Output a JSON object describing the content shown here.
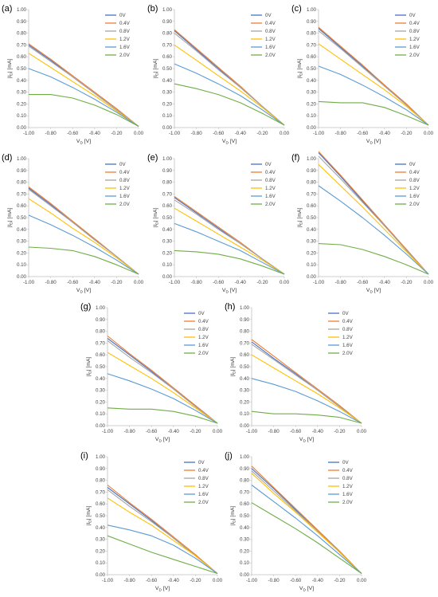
{
  "figure": {
    "xaxis": {
      "label": "V",
      "label_sub": "D",
      "label_unit": " [V]",
      "ticks": [
        "-1.00",
        "-0.80",
        "-0.60",
        "-0.40",
        "-0.20",
        "0.00"
      ],
      "range": [
        -1.0,
        0.0
      ]
    },
    "yaxis": {
      "label": "|I",
      "label_sub": "D",
      "label_unit": "| [mA]",
      "ticks": [
        "0.00",
        "0.10",
        "0.20",
        "0.30",
        "0.40",
        "0.50",
        "0.60",
        "0.70",
        "0.80",
        "0.90",
        "1.00"
      ],
      "range": [
        0.0,
        1.0
      ]
    },
    "legend": [
      "0V",
      "0.4V",
      "0.8V",
      "1.2V",
      "1.6V",
      "2.0V"
    ],
    "colors": [
      "#4472C4",
      "#ED7D31",
      "#A5A5A5",
      "#FFC000",
      "#5B9BD5",
      "#70AD47"
    ]
  },
  "chart_data": [
    {
      "panel": "(a)",
      "type": "line",
      "x": [
        -1.0,
        -0.8,
        -0.6,
        -0.4,
        -0.2,
        0.0
      ],
      "series": [
        {
          "name": "0V",
          "values": [
            0.7,
            0.57,
            0.43,
            0.29,
            0.15,
            0.01
          ]
        },
        {
          "name": "0.4V",
          "values": [
            0.71,
            0.58,
            0.44,
            0.3,
            0.16,
            0.01
          ]
        },
        {
          "name": "0.8V",
          "values": [
            0.69,
            0.56,
            0.43,
            0.29,
            0.15,
            0.01
          ]
        },
        {
          "name": "1.2V",
          "values": [
            0.63,
            0.51,
            0.39,
            0.27,
            0.14,
            0.01
          ]
        },
        {
          "name": "1.6V",
          "values": [
            0.5,
            0.43,
            0.34,
            0.24,
            0.13,
            0.01
          ]
        },
        {
          "name": "2.0V",
          "values": [
            0.28,
            0.28,
            0.25,
            0.19,
            0.11,
            0.01
          ]
        }
      ]
    },
    {
      "panel": "(b)",
      "type": "line",
      "x": [
        -1.0,
        -0.8,
        -0.6,
        -0.4,
        -0.2,
        0.0
      ],
      "series": [
        {
          "name": "0V",
          "values": [
            0.82,
            0.66,
            0.5,
            0.34,
            0.18,
            0.02
          ]
        },
        {
          "name": "0.4V",
          "values": [
            0.83,
            0.67,
            0.51,
            0.35,
            0.18,
            0.02
          ]
        },
        {
          "name": "0.8V",
          "values": [
            0.8,
            0.65,
            0.49,
            0.34,
            0.18,
            0.02
          ]
        },
        {
          "name": "1.2V",
          "values": [
            0.7,
            0.57,
            0.44,
            0.31,
            0.17,
            0.02
          ]
        },
        {
          "name": "1.6V",
          "values": [
            0.54,
            0.46,
            0.37,
            0.27,
            0.15,
            0.02
          ]
        },
        {
          "name": "2.0V",
          "values": [
            0.37,
            0.33,
            0.28,
            0.21,
            0.12,
            0.02
          ]
        }
      ]
    },
    {
      "panel": "(c)",
      "type": "line",
      "x": [
        -1.0,
        -0.8,
        -0.6,
        -0.4,
        -0.2,
        0.0
      ],
      "series": [
        {
          "name": "0V",
          "values": [
            0.84,
            0.68,
            0.52,
            0.36,
            0.19,
            0.02
          ]
        },
        {
          "name": "0.4V",
          "values": [
            0.85,
            0.69,
            0.53,
            0.36,
            0.2,
            0.02
          ]
        },
        {
          "name": "0.8V",
          "values": [
            0.82,
            0.67,
            0.51,
            0.35,
            0.19,
            0.02
          ]
        },
        {
          "name": "1.2V",
          "values": [
            0.71,
            0.58,
            0.45,
            0.32,
            0.18,
            0.02
          ]
        },
        {
          "name": "1.6V",
          "values": [
            0.52,
            0.45,
            0.36,
            0.26,
            0.15,
            0.02
          ]
        },
        {
          "name": "2.0V",
          "values": [
            0.22,
            0.21,
            0.21,
            0.17,
            0.1,
            0.02
          ]
        }
      ]
    },
    {
      "panel": "(d)",
      "type": "line",
      "x": [
        -1.0,
        -0.8,
        -0.6,
        -0.4,
        -0.2,
        0.0
      ],
      "series": [
        {
          "name": "0V",
          "values": [
            0.75,
            0.61,
            0.46,
            0.32,
            0.17,
            0.02
          ]
        },
        {
          "name": "0.4V",
          "values": [
            0.76,
            0.62,
            0.47,
            0.32,
            0.17,
            0.02
          ]
        },
        {
          "name": "0.8V",
          "values": [
            0.74,
            0.6,
            0.46,
            0.31,
            0.17,
            0.02
          ]
        },
        {
          "name": "1.2V",
          "values": [
            0.66,
            0.54,
            0.41,
            0.29,
            0.16,
            0.02
          ]
        },
        {
          "name": "1.6V",
          "values": [
            0.52,
            0.44,
            0.35,
            0.25,
            0.14,
            0.02
          ]
        },
        {
          "name": "2.0V",
          "values": [
            0.25,
            0.24,
            0.22,
            0.17,
            0.1,
            0.02
          ]
        }
      ]
    },
    {
      "panel": "(e)",
      "type": "line",
      "x": [
        -1.0,
        -0.8,
        -0.6,
        -0.4,
        -0.2,
        0.0
      ],
      "series": [
        {
          "name": "0V",
          "values": [
            0.67,
            0.54,
            0.41,
            0.28,
            0.15,
            0.02
          ]
        },
        {
          "name": "0.4V",
          "values": [
            0.68,
            0.55,
            0.42,
            0.29,
            0.15,
            0.02
          ]
        },
        {
          "name": "0.8V",
          "values": [
            0.65,
            0.53,
            0.4,
            0.28,
            0.15,
            0.02
          ]
        },
        {
          "name": "1.2V",
          "values": [
            0.58,
            0.47,
            0.36,
            0.25,
            0.14,
            0.02
          ]
        },
        {
          "name": "1.6V",
          "values": [
            0.45,
            0.38,
            0.3,
            0.22,
            0.12,
            0.02
          ]
        },
        {
          "name": "2.0V",
          "values": [
            0.22,
            0.21,
            0.19,
            0.15,
            0.09,
            0.02
          ]
        }
      ]
    },
    {
      "panel": "(f)",
      "type": "line",
      "x": [
        -1.0,
        -0.8,
        -0.6,
        -0.4,
        -0.2,
        0.0
      ],
      "series": [
        {
          "name": "0V",
          "values": [
            1.05,
            0.85,
            0.64,
            0.43,
            0.23,
            0.02
          ]
        },
        {
          "name": "0.4V",
          "values": [
            1.06,
            0.86,
            0.65,
            0.44,
            0.23,
            0.02
          ]
        },
        {
          "name": "0.8V",
          "values": [
            1.02,
            0.83,
            0.63,
            0.43,
            0.22,
            0.02
          ]
        },
        {
          "name": "1.2V",
          "values": [
            0.95,
            0.77,
            0.59,
            0.4,
            0.21,
            0.02
          ]
        },
        {
          "name": "1.6V",
          "values": [
            0.77,
            0.64,
            0.5,
            0.35,
            0.19,
            0.02
          ]
        },
        {
          "name": "2.0V",
          "values": [
            0.28,
            0.27,
            0.23,
            0.17,
            0.1,
            0.02
          ]
        }
      ]
    },
    {
      "panel": "(g)",
      "type": "line",
      "x": [
        -1.0,
        -0.8,
        -0.6,
        -0.4,
        -0.2,
        0.0
      ],
      "series": [
        {
          "name": "0V",
          "values": [
            0.74,
            0.6,
            0.46,
            0.31,
            0.17,
            0.02
          ]
        },
        {
          "name": "0.4V",
          "values": [
            0.76,
            0.61,
            0.47,
            0.32,
            0.17,
            0.02
          ]
        },
        {
          "name": "0.8V",
          "values": [
            0.72,
            0.58,
            0.45,
            0.31,
            0.16,
            0.02
          ]
        },
        {
          "name": "1.2V",
          "values": [
            0.62,
            0.51,
            0.4,
            0.28,
            0.15,
            0.02
          ]
        },
        {
          "name": "1.6V",
          "values": [
            0.44,
            0.38,
            0.31,
            0.23,
            0.13,
            0.02
          ]
        },
        {
          "name": "2.0V",
          "values": [
            0.15,
            0.14,
            0.14,
            0.12,
            0.08,
            0.02
          ]
        }
      ]
    },
    {
      "panel": "(h)",
      "type": "line",
      "x": [
        -1.0,
        -0.8,
        -0.6,
        -0.4,
        -0.2,
        0.0
      ],
      "series": [
        {
          "name": "0V",
          "values": [
            0.71,
            0.57,
            0.44,
            0.3,
            0.16,
            0.02
          ]
        },
        {
          "name": "0.4V",
          "values": [
            0.73,
            0.59,
            0.45,
            0.31,
            0.17,
            0.02
          ]
        },
        {
          "name": "0.8V",
          "values": [
            0.69,
            0.56,
            0.43,
            0.3,
            0.16,
            0.02
          ]
        },
        {
          "name": "1.2V",
          "values": [
            0.6,
            0.49,
            0.38,
            0.27,
            0.15,
            0.02
          ]
        },
        {
          "name": "1.6V",
          "values": [
            0.4,
            0.35,
            0.29,
            0.21,
            0.12,
            0.02
          ]
        },
        {
          "name": "2.0V",
          "values": [
            0.12,
            0.1,
            0.1,
            0.09,
            0.07,
            0.02
          ]
        }
      ]
    },
    {
      "panel": "(i)",
      "type": "line",
      "x": [
        -1.0,
        -0.8,
        -0.6,
        -0.4,
        -0.2,
        0.0
      ],
      "series": [
        {
          "name": "0V",
          "values": [
            0.74,
            0.6,
            0.46,
            0.31,
            0.16,
            0.01
          ]
        },
        {
          "name": "0.4V",
          "values": [
            0.76,
            0.61,
            0.47,
            0.32,
            0.17,
            0.01
          ]
        },
        {
          "name": "0.8V",
          "values": [
            0.72,
            0.58,
            0.45,
            0.31,
            0.16,
            0.01
          ]
        },
        {
          "name": "1.2V",
          "values": [
            0.65,
            0.53,
            0.42,
            0.29,
            0.16,
            0.01
          ]
        },
        {
          "name": "1.6V",
          "values": [
            0.42,
            0.38,
            0.33,
            0.25,
            0.14,
            0.01
          ]
        },
        {
          "name": "2.0V",
          "values": [
            0.33,
            0.26,
            0.19,
            0.13,
            0.07,
            0.01
          ]
        }
      ]
    },
    {
      "panel": "(j)",
      "type": "line",
      "x": [
        -1.0,
        -0.8,
        -0.6,
        -0.4,
        -0.2,
        0.0
      ],
      "series": [
        {
          "name": "0V",
          "values": [
            0.9,
            0.73,
            0.55,
            0.37,
            0.19,
            0.01
          ]
        },
        {
          "name": "0.4V",
          "values": [
            0.92,
            0.74,
            0.56,
            0.38,
            0.2,
            0.01
          ]
        },
        {
          "name": "0.8V",
          "values": [
            0.88,
            0.71,
            0.54,
            0.37,
            0.19,
            0.01
          ]
        },
        {
          "name": "1.2V",
          "values": [
            0.86,
            0.69,
            0.53,
            0.36,
            0.19,
            0.01
          ]
        },
        {
          "name": "1.6V",
          "values": [
            0.76,
            0.62,
            0.48,
            0.33,
            0.17,
            0.01
          ]
        },
        {
          "name": "2.0V",
          "values": [
            0.61,
            0.5,
            0.39,
            0.27,
            0.14,
            0.01
          ]
        }
      ]
    }
  ]
}
